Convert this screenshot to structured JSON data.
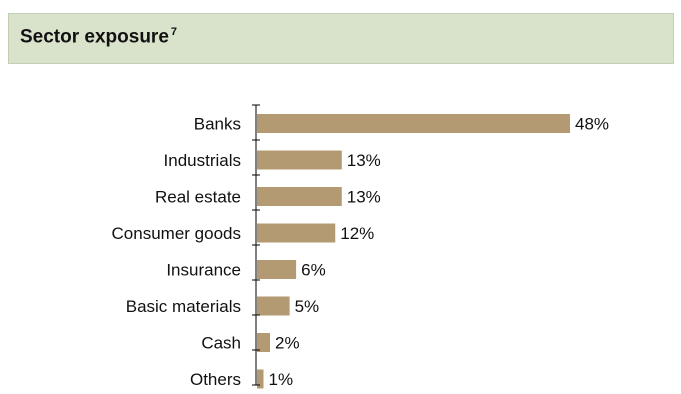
{
  "header": {
    "title": "Sector exposure",
    "footnote": "7"
  },
  "colors": {
    "bar": "#b39a72",
    "header_bg": "#d9e3cc",
    "axis": "#000000"
  },
  "chart_data": {
    "type": "bar",
    "orientation": "horizontal",
    "categories": [
      "Banks",
      "Industrials",
      "Real estate",
      "Consumer goods",
      "Insurance",
      "Basic materials",
      "Cash",
      "Others"
    ],
    "values": [
      48,
      13,
      13,
      12,
      6,
      5,
      2,
      1
    ],
    "data_labels": [
      "48%",
      "13%",
      "13%",
      "12%",
      "6%",
      "5%",
      "2%",
      "1%"
    ],
    "xlim": [
      0,
      48
    ],
    "grid": false,
    "legend": "none"
  }
}
